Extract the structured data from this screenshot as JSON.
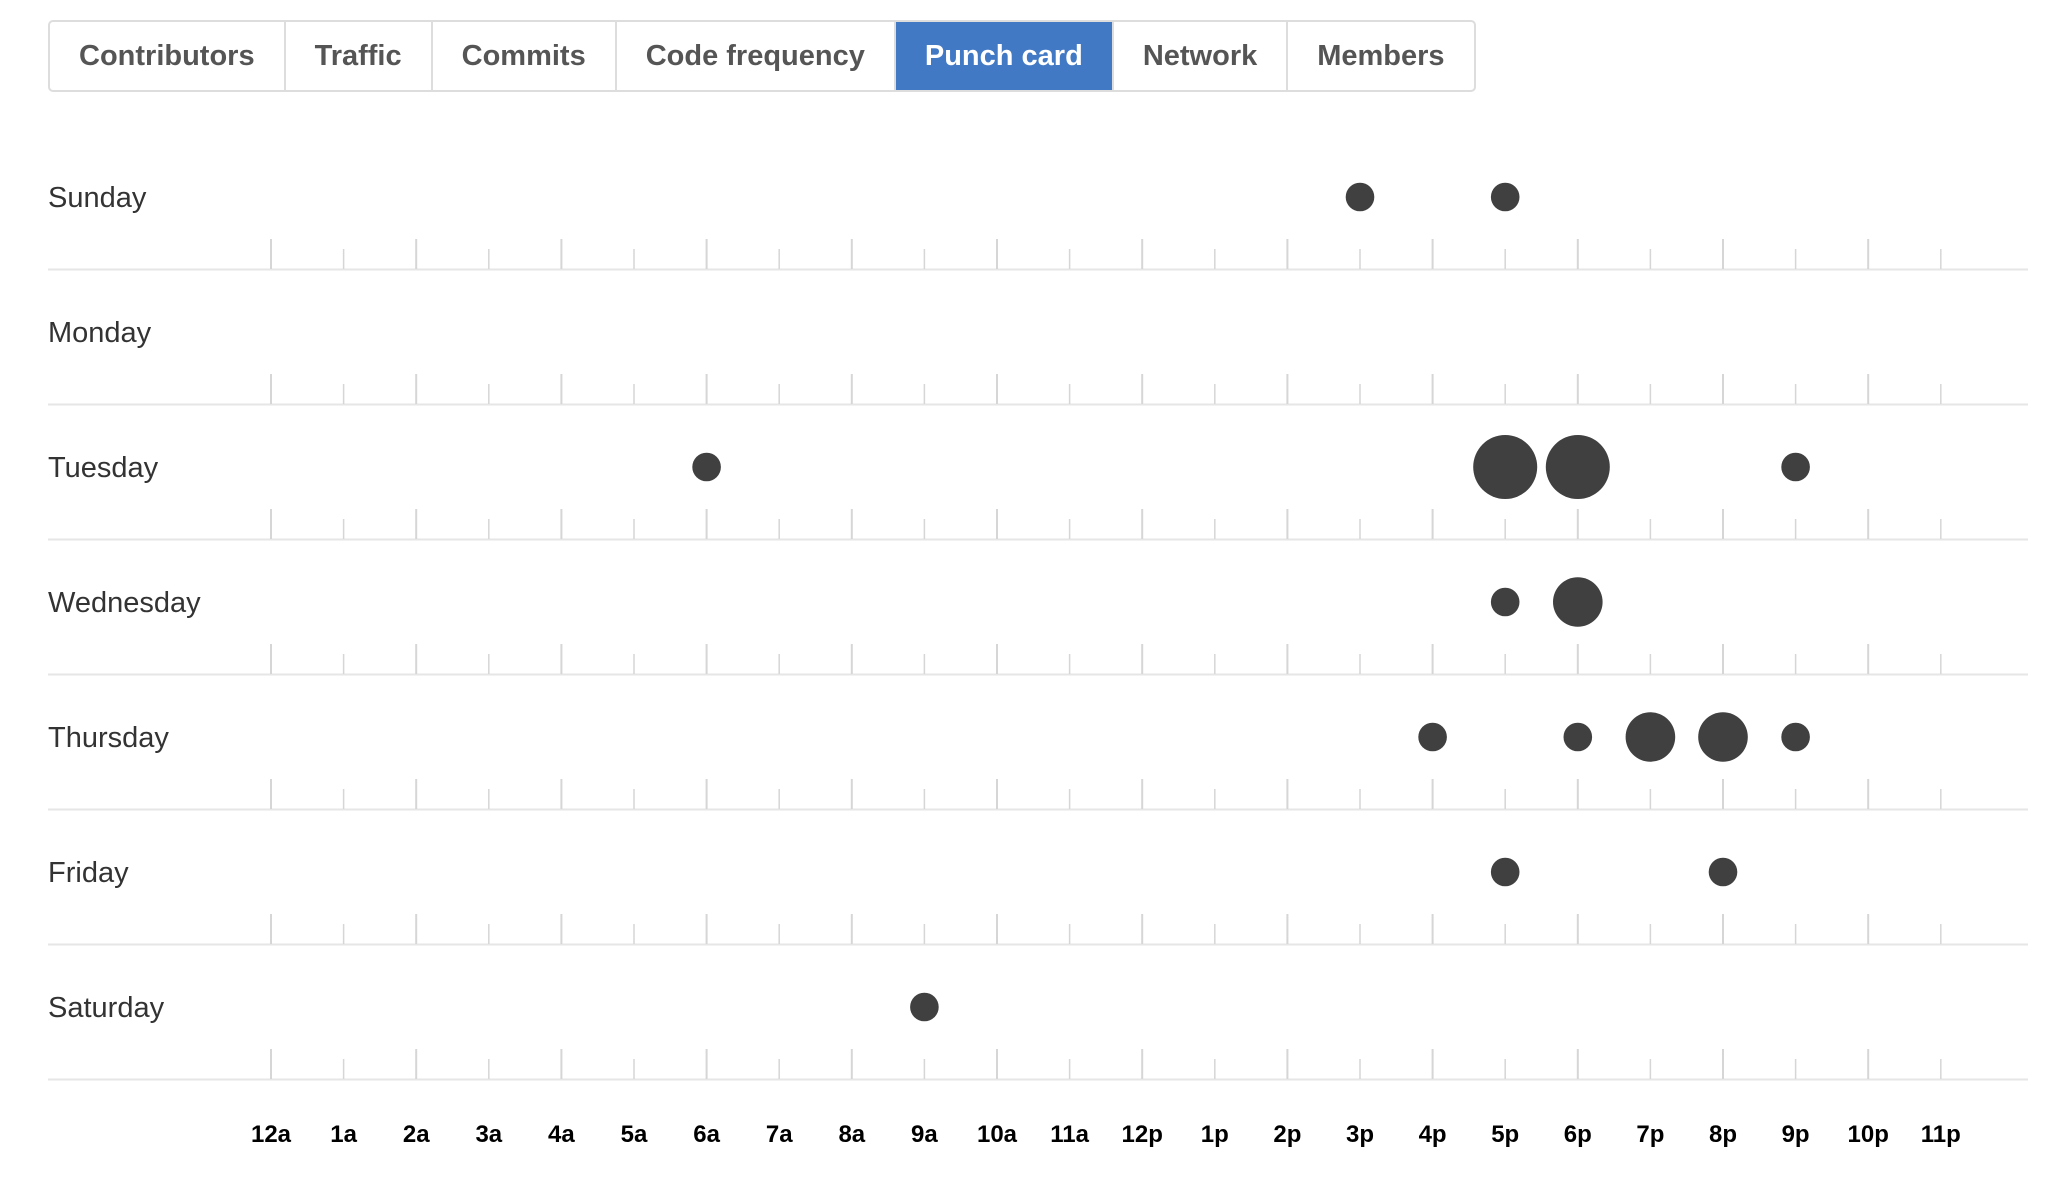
{
  "tabs": [
    {
      "label": "Contributors",
      "active": false
    },
    {
      "label": "Traffic",
      "active": false
    },
    {
      "label": "Commits",
      "active": false
    },
    {
      "label": "Code frequency",
      "active": false
    },
    {
      "label": "Punch card",
      "active": true
    },
    {
      "label": "Network",
      "active": false
    },
    {
      "label": "Members",
      "active": false
    }
  ],
  "colors": {
    "active_tab": "#4279c5",
    "dot": "#404040",
    "gridline": "#e6e6e6",
    "tick": "#d6d6d6"
  },
  "chart_data": {
    "type": "scatter",
    "days": [
      "Sunday",
      "Monday",
      "Tuesday",
      "Wednesday",
      "Thursday",
      "Friday",
      "Saturday"
    ],
    "hours": [
      "12a",
      "1a",
      "2a",
      "3a",
      "4a",
      "5a",
      "6a",
      "7a",
      "8a",
      "9a",
      "10a",
      "11a",
      "12p",
      "1p",
      "2p",
      "3p",
      "4p",
      "5p",
      "6p",
      "7p",
      "8p",
      "9p",
      "10p",
      "11p"
    ],
    "points": [
      {
        "day": "Sunday",
        "hour": "3p",
        "value": 1
      },
      {
        "day": "Sunday",
        "hour": "5p",
        "value": 1
      },
      {
        "day": "Tuesday",
        "hour": "6a",
        "value": 1
      },
      {
        "day": "Tuesday",
        "hour": "5p",
        "value": 5
      },
      {
        "day": "Tuesday",
        "hour": "6p",
        "value": 5
      },
      {
        "day": "Tuesday",
        "hour": "9p",
        "value": 1
      },
      {
        "day": "Wednesday",
        "hour": "5p",
        "value": 1
      },
      {
        "day": "Wednesday",
        "hour": "6p",
        "value": 3
      },
      {
        "day": "Thursday",
        "hour": "4p",
        "value": 1
      },
      {
        "day": "Thursday",
        "hour": "6p",
        "value": 1
      },
      {
        "day": "Thursday",
        "hour": "7p",
        "value": 3
      },
      {
        "day": "Thursday",
        "hour": "8p",
        "value": 3
      },
      {
        "day": "Thursday",
        "hour": "9p",
        "value": 1
      },
      {
        "day": "Friday",
        "hour": "5p",
        "value": 1
      },
      {
        "day": "Friday",
        "hour": "8p",
        "value": 1
      },
      {
        "day": "Saturday",
        "hour": "9a",
        "value": 1
      }
    ]
  }
}
